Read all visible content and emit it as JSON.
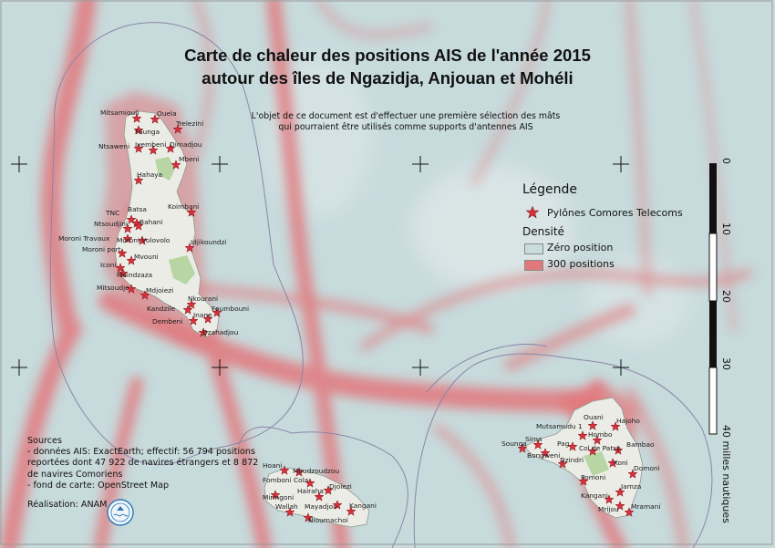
{
  "title": {
    "line1": "Carte de chaleur des positions AIS de l'année 2015",
    "line2": "autour des îles de Ngazidja, Anjouan et Mohéli"
  },
  "subtitle": {
    "line1": "L'objet de ce document est d'effectuer une première sélection des mâts",
    "line2": "qui pourraient être utilisés comme supports d'antennes AIS"
  },
  "legend": {
    "title": "Légende",
    "pylons_label": "Pylônes Comores Telecoms",
    "density_label": "Densité",
    "zero_label": "Zéro position",
    "max_label": "300 positions",
    "zero_color": "#c9dcde",
    "max_color": "#e0787c",
    "pylon_color": "#d8303a"
  },
  "scale_bar": {
    "ticks": [
      "0",
      "10",
      "20",
      "30",
      "40 milles nautiques"
    ]
  },
  "sources": {
    "lines": [
      "Sources",
      "- données AIS: ExactEarth; effectif:  56 794 positions",
      "reportées dont 47 922 de navires étrangers et 8 872",
      "de navires Comoriens",
      "- fond de carte: OpenStreet Map"
    ],
    "realisation": "Réalisation: ANAM",
    "seal_icon": "anam-seal-icon"
  },
  "colors": {
    "sea": "#c7dadc",
    "land": "#ecece6",
    "heat": "#e2777b",
    "eez_line": "#8a86a8"
  },
  "places": {
    "ngazidja": [
      "Mitsamiouli",
      "Ouela",
      "Founga",
      "Trelezini",
      "Ntsaweni",
      "Ivembeni",
      "Dimadjou",
      "Mbeni",
      "Hahaya",
      "Koimbani",
      "TNC",
      "Batsa",
      "Ntsoudjini",
      "Bahani",
      "Moroni Travaux",
      "Moroni Volovolo",
      "Moroni port",
      "Mvouni",
      "Idjikoundzi",
      "Iconi",
      "Moindzaza",
      "Mitsoudje",
      "Mdjoiezi",
      "Nkourani",
      "Foumbouni",
      "Kandzile",
      "Inane",
      "Dembeni",
      "Dzahadjou"
    ],
    "moheli": [
      "Hoani",
      "Moudzoudzou",
      "Fomboni Cola",
      "Djoiezi",
      "Hairaha",
      "Miringoni",
      "Wallah",
      "Mayadjou",
      "Kangani",
      "Nioumachoi"
    ],
    "anjouan": [
      "Ouani",
      "Hajoho",
      "Mutsamudu 1",
      "Hombo",
      "Sima",
      "Pag",
      "Bambao",
      "Sounga",
      "Col de Patsy",
      "Bongweni",
      "Dzindri",
      "Koni",
      "Domoni",
      "Pomoni",
      "Jamza",
      "Kangani",
      "Mrijou",
      "Mramani"
    ]
  }
}
